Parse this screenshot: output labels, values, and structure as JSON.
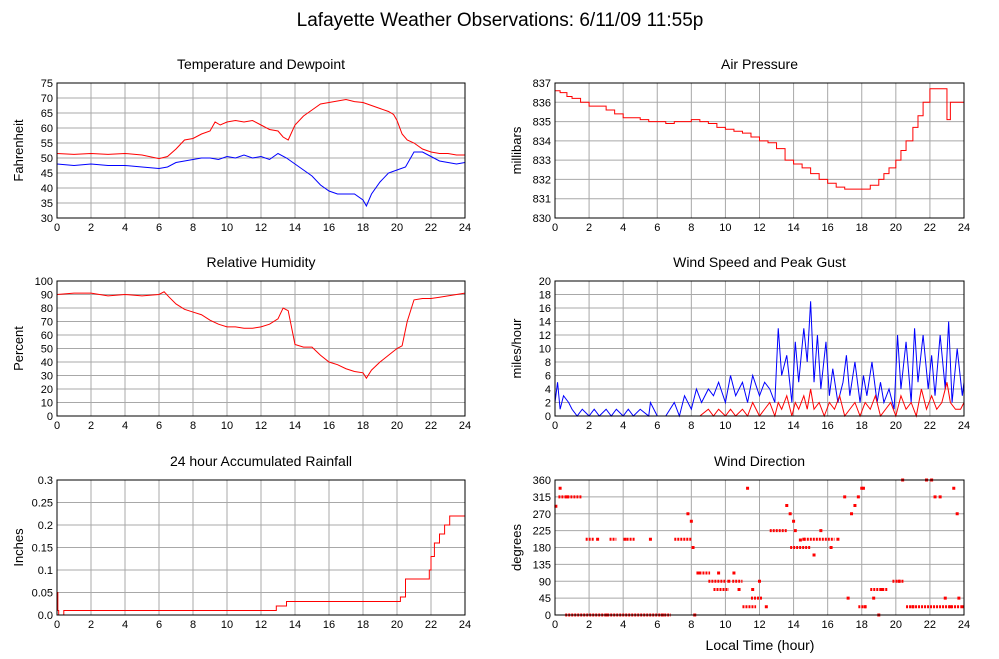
{
  "title": "Lafayette Weather Observations: 6/11/09 11:55p",
  "xlabel_shared": "Local Time (hour)",
  "chart_data": [
    {
      "id": "temperature",
      "type": "line",
      "title": "Temperature and Dewpoint",
      "xlabel": "",
      "ylabel": "Fahrenheit",
      "xlim": [
        0,
        24
      ],
      "ylim": [
        30,
        75
      ],
      "xticks": [
        0,
        2,
        4,
        6,
        8,
        10,
        12,
        14,
        16,
        18,
        20,
        22,
        24
      ],
      "yticks": [
        30,
        35,
        40,
        45,
        50,
        55,
        60,
        65,
        70,
        75
      ],
      "grid": true,
      "series": [
        {
          "color": "#ff0000",
          "step": false,
          "x": [
            0,
            1,
            2,
            3,
            4,
            5,
            6,
            6.5,
            7,
            7.5,
            8,
            8.5,
            9,
            9.3,
            9.6,
            10,
            10.5,
            11,
            11.5,
            12,
            12.5,
            13,
            13.3,
            13.6,
            14,
            14.5,
            15,
            15.5,
            16,
            16.5,
            17,
            17.5,
            18,
            18.5,
            19,
            19.5,
            19.8,
            20,
            20.3,
            20.6,
            21,
            21.5,
            22,
            22.5,
            23,
            23.5,
            24
          ],
          "y": [
            51.5,
            51.2,
            51.5,
            51.2,
            51.5,
            51,
            49.8,
            50.5,
            53,
            56,
            56.5,
            58,
            59,
            62,
            61,
            62,
            62.5,
            62,
            62.5,
            61,
            59.5,
            59,
            57,
            56,
            61,
            64,
            66,
            68,
            68.5,
            69,
            69.5,
            68.8,
            68.5,
            67.5,
            66.5,
            65.5,
            64.5,
            62.5,
            58,
            56,
            55,
            53,
            52,
            51.5,
            51.5,
            51,
            51
          ]
        },
        {
          "color": "#0000ff",
          "step": false,
          "x": [
            0,
            1,
            2,
            3,
            4,
            5,
            6,
            6.5,
            7,
            7.5,
            8,
            8.5,
            9,
            9.5,
            10,
            10.5,
            11,
            11.5,
            12,
            12.5,
            13,
            13.5,
            14,
            14.5,
            15,
            15.5,
            16,
            16.5,
            17,
            17.5,
            18,
            18.2,
            18.5,
            19,
            19.5,
            20,
            20.5,
            21,
            21.5,
            22,
            22.5,
            23,
            23.5,
            24
          ],
          "y": [
            48,
            47.5,
            48,
            47.5,
            47.5,
            47,
            46.5,
            47,
            48.5,
            49,
            49.5,
            50,
            50,
            49.5,
            50.5,
            50,
            51,
            50,
            50.5,
            49.5,
            51.5,
            50,
            48,
            46,
            44,
            41,
            39,
            38,
            38,
            38,
            36,
            34,
            38,
            42,
            45,
            46,
            47,
            52,
            52,
            50.5,
            49,
            48.5,
            48,
            48.5
          ]
        }
      ]
    },
    {
      "id": "pressure",
      "type": "line",
      "title": "Air Pressure",
      "xlabel": "",
      "ylabel": "millibars",
      "xlim": [
        0,
        24
      ],
      "ylim": [
        830,
        837
      ],
      "xticks": [
        0,
        2,
        4,
        6,
        8,
        10,
        12,
        14,
        16,
        18,
        20,
        22,
        24
      ],
      "yticks": [
        830,
        831,
        832,
        833,
        834,
        835,
        836,
        837
      ],
      "grid": true,
      "series": [
        {
          "color": "#ff0000",
          "step": true,
          "x": [
            0,
            0.3,
            0.7,
            1,
            1.5,
            2,
            3,
            3.5,
            4,
            5,
            5.5,
            6,
            6.5,
            7,
            7.5,
            8,
            8.5,
            9,
            9.5,
            10,
            10.5,
            11,
            11.5,
            12,
            12.5,
            13,
            13.5,
            14,
            14.5,
            15,
            15.5,
            16,
            16.5,
            17,
            17.5,
            18,
            18.5,
            19,
            19.3,
            19.6,
            20,
            20.3,
            20.6,
            21,
            21.3,
            21.6,
            22,
            22.5,
            23,
            23.2,
            23.5,
            24
          ],
          "x_note": "",
          "y": [
            836.6,
            836.5,
            836.3,
            836.2,
            836.0,
            835.8,
            835.6,
            835.4,
            835.2,
            835.1,
            835.0,
            835.0,
            834.9,
            835.0,
            835.0,
            835.1,
            835.0,
            834.9,
            834.7,
            834.6,
            834.5,
            834.4,
            834.2,
            834.0,
            833.9,
            833.6,
            833.0,
            832.8,
            832.6,
            832.3,
            832.0,
            831.8,
            831.6,
            831.5,
            831.5,
            831.5,
            831.7,
            832.0,
            832.3,
            832.6,
            833.0,
            833.5,
            834.0,
            834.7,
            835.3,
            836.0,
            836.7,
            836.7,
            835.1,
            836.0,
            836.0,
            835.5
          ]
        }
      ]
    },
    {
      "id": "humidity",
      "type": "line",
      "title": "Relative Humidity",
      "xlabel": "",
      "ylabel": "Percent",
      "xlim": [
        0,
        24
      ],
      "ylim": [
        0,
        100
      ],
      "xticks": [
        0,
        2,
        4,
        6,
        8,
        10,
        12,
        14,
        16,
        18,
        20,
        22,
        24
      ],
      "yticks": [
        0,
        10,
        20,
        30,
        40,
        50,
        60,
        70,
        80,
        90,
        100
      ],
      "grid": true,
      "series": [
        {
          "color": "#ff0000",
          "step": false,
          "x": [
            0,
            1,
            2,
            3,
            4,
            5,
            6,
            6.3,
            6.6,
            7,
            7.5,
            8,
            8.5,
            9,
            9.5,
            10,
            10.5,
            11,
            11.5,
            12,
            12.5,
            13,
            13.3,
            13.6,
            14,
            14.5,
            15,
            15.5,
            16,
            16.5,
            17,
            17.5,
            18,
            18.2,
            18.5,
            19,
            19.5,
            20,
            20.3,
            20.6,
            21,
            21.5,
            22,
            22.5,
            23,
            23.5,
            24
          ],
          "y": [
            90,
            91,
            91,
            89,
            90,
            89,
            90,
            92,
            88,
            83,
            79,
            77,
            75,
            71,
            68,
            66,
            66,
            65,
            65,
            66,
            68,
            72,
            80,
            78,
            53,
            51,
            51,
            45,
            40,
            38,
            35,
            33,
            32,
            28,
            34,
            40,
            45,
            50,
            52,
            70,
            86,
            87,
            87,
            88,
            89,
            90,
            91
          ]
        }
      ]
    },
    {
      "id": "wind",
      "type": "line",
      "title": "Wind Speed and Peak Gust",
      "xlabel": "",
      "ylabel": "miles/hour",
      "xlim": [
        0,
        24
      ],
      "ylim": [
        0,
        20
      ],
      "xticks": [
        0,
        2,
        4,
        6,
        8,
        10,
        12,
        14,
        16,
        18,
        20,
        22,
        24
      ],
      "yticks": [
        0,
        2,
        4,
        6,
        8,
        10,
        12,
        14,
        16,
        18,
        20
      ],
      "grid": true,
      "series": [
        {
          "color": "#0000ff",
          "step": false,
          "x": [
            0,
            0.15,
            0.3,
            0.5,
            0.8,
            1,
            1.3,
            1.6,
            2,
            2.3,
            2.6,
            3,
            3.3,
            3.6,
            4,
            4.3,
            4.6,
            5,
            5.5,
            5.6,
            6,
            6.5,
            7,
            7.3,
            7.6,
            8,
            8.3,
            8.6,
            9,
            9.3,
            9.6,
            10,
            10.3,
            10.6,
            11,
            11.3,
            11.6,
            12,
            12.3,
            12.6,
            12.9,
            13.1,
            13.3,
            13.6,
            13.9,
            14.1,
            14.3,
            14.6,
            14.8,
            15,
            15.2,
            15.4,
            15.6,
            15.9,
            16.1,
            16.3,
            16.6,
            16.9,
            17.1,
            17.3,
            17.6,
            17.9,
            18.1,
            18.3,
            18.6,
            18.9,
            19.1,
            19.3,
            19.6,
            19.9,
            20.1,
            20.3,
            20.6,
            20.9,
            21.1,
            21.3,
            21.6,
            21.9,
            22.1,
            22.3,
            22.6,
            22.9,
            23.1,
            23.3,
            23.6,
            23.9,
            24
          ],
          "y": [
            2,
            5,
            1,
            3,
            2,
            1,
            0,
            1,
            0,
            1,
            0,
            1,
            0,
            1,
            0,
            1,
            0,
            1,
            0,
            2,
            0,
            0,
            2,
            0,
            3,
            1,
            4,
            2,
            4,
            3,
            5,
            2,
            6,
            3,
            5,
            2,
            6,
            3,
            5,
            4,
            2,
            13,
            6,
            9,
            2,
            11,
            5,
            13,
            8,
            17,
            5,
            12,
            4,
            11,
            3,
            7,
            2,
            5,
            9,
            3,
            8,
            2,
            6,
            3,
            8,
            2,
            5,
            2,
            4,
            1,
            12,
            4,
            11,
            2,
            13,
            5,
            12,
            4,
            9,
            3,
            12,
            4,
            14,
            2,
            10,
            3,
            5
          ]
        },
        {
          "color": "#ff0000",
          "step": false,
          "x": [
            0,
            0.5,
            1,
            2,
            3,
            4,
            5,
            6,
            7,
            8,
            8.5,
            9,
            9.3,
            9.6,
            10,
            10.3,
            10.6,
            11,
            11.3,
            11.6,
            12,
            12.3,
            12.6,
            12.9,
            13.1,
            13.3,
            13.6,
            13.9,
            14.1,
            14.3,
            14.6,
            14.8,
            15,
            15.2,
            15.5,
            15.8,
            16.1,
            16.4,
            16.7,
            17,
            17.3,
            17.6,
            17.9,
            18.2,
            18.5,
            18.8,
            19.1,
            19.4,
            19.7,
            20,
            20.3,
            20.6,
            20.9,
            21.2,
            21.5,
            21.8,
            22.1,
            22.4,
            22.7,
            23,
            23.2,
            23.5,
            23.8,
            24
          ],
          "y": [
            0,
            0,
            0,
            0,
            0,
            0,
            0,
            0,
            0,
            0,
            0,
            1,
            0,
            1,
            0,
            1,
            0,
            1,
            0,
            2,
            0,
            1,
            2,
            0,
            2,
            1,
            3,
            0,
            2,
            1,
            3,
            1,
            4,
            1,
            2,
            0,
            2,
            1,
            3,
            0,
            1,
            2,
            0,
            2,
            1,
            3,
            0,
            1,
            2,
            0,
            3,
            1,
            2,
            0,
            4,
            1,
            3,
            1,
            2,
            5,
            2,
            1,
            1,
            2
          ]
        }
      ]
    },
    {
      "id": "rainfall",
      "type": "line",
      "title": "24 hour Accumulated Rainfall",
      "xlabel": "",
      "ylabel": "Inches",
      "xlim": [
        0,
        24
      ],
      "ylim": [
        0,
        0.3
      ],
      "xticks": [
        0,
        2,
        4,
        6,
        8,
        10,
        12,
        14,
        16,
        18,
        20,
        22,
        24
      ],
      "yticks": [
        0,
        0.05,
        0.1,
        0.15,
        0.2,
        0.25,
        0.3
      ],
      "yticklabels": [
        "0.0",
        "0.05",
        "0.1",
        "0.15",
        "0.2",
        "0.25",
        "0.3"
      ],
      "grid": true,
      "series": [
        {
          "color": "#ff0000",
          "step": true,
          "x": [
            0,
            0.05,
            0.1,
            0.4,
            12.9,
            13.5,
            20.2,
            20.5,
            21.9,
            22.0,
            22.2,
            22.5,
            22.8,
            23.1,
            23.4,
            24
          ],
          "y": [
            0.05,
            0.01,
            0,
            0.01,
            0.02,
            0.03,
            0.04,
            0.08,
            0.1,
            0.13,
            0.16,
            0.18,
            0.2,
            0.22,
            0.22,
            0.22
          ]
        }
      ]
    },
    {
      "id": "direction",
      "type": "scatter",
      "title": "Wind Direction",
      "xlabel": "Local Time (hour)",
      "ylabel": "degrees",
      "xlim": [
        0,
        24
      ],
      "ylim": [
        0,
        360
      ],
      "xticks": [
        0,
        2,
        4,
        6,
        8,
        10,
        12,
        14,
        16,
        18,
        20,
        22,
        24
      ],
      "yticks": [
        0,
        45,
        90,
        135,
        180,
        225,
        270,
        315,
        360
      ],
      "grid": true,
      "segments": [
        {
          "x0": 0.2,
          "x1": 1.6,
          "y": 315
        },
        {
          "x0": 0.6,
          "x1": 6.8,
          "y": 0
        },
        {
          "x0": 1.8,
          "x1": 2.3,
          "y": 202
        },
        {
          "x0": 3.2,
          "x1": 3.6,
          "y": 202
        },
        {
          "x0": 4.2,
          "x1": 4.7,
          "y": 202
        },
        {
          "x0": 7.0,
          "x1": 8.0,
          "y": 202
        },
        {
          "x0": 8.3,
          "x1": 9.1,
          "y": 112
        },
        {
          "x0": 9.0,
          "x1": 10.0,
          "y": 90
        },
        {
          "x0": 9.3,
          "x1": 10.2,
          "y": 68
        },
        {
          "x0": 10.4,
          "x1": 11.0,
          "y": 90
        },
        {
          "x0": 11.0,
          "x1": 11.8,
          "y": 22
        },
        {
          "x0": 11.5,
          "x1": 12.2,
          "y": 45
        },
        {
          "x0": 12.6,
          "x1": 13.6,
          "y": 225
        },
        {
          "x0": 13.8,
          "x1": 15.0,
          "y": 180
        },
        {
          "x0": 14.6,
          "x1": 16.4,
          "y": 202
        },
        {
          "x0": 17.8,
          "x1": 18.3,
          "y": 22
        },
        {
          "x0": 18.5,
          "x1": 19.5,
          "y": 68
        },
        {
          "x0": 19.8,
          "x1": 20.5,
          "y": 90
        },
        {
          "x0": 20.6,
          "x1": 23.8,
          "y": 22
        }
      ],
      "points_x": [
        0.05,
        0.3,
        0.7,
        2.5,
        3.0,
        4.1,
        5.6,
        6.3,
        7.8,
        8.0,
        8.1,
        8.2,
        8.4,
        9.6,
        10.2,
        10.5,
        10.8,
        11.3,
        11.6,
        12.0,
        12.4,
        13.6,
        13.8,
        14.0,
        14.1,
        14.4,
        14.6,
        15.2,
        15.6,
        16.2,
        16.6,
        17.0,
        17.2,
        17.4,
        17.6,
        17.8,
        18.0,
        18.1,
        18.2,
        18.7,
        19.0,
        19.2,
        20.2,
        20.4,
        21.0,
        21.8,
        22.1,
        22.3,
        22.6,
        22.9,
        23.2,
        23.4,
        23.6,
        23.7,
        23.9
      ],
      "points_y": [
        290,
        338,
        315,
        202,
        0,
        202,
        202,
        0,
        270,
        250,
        180,
        0,
        112,
        112,
        90,
        112,
        68,
        338,
        68,
        90,
        22,
        292,
        270,
        250,
        225,
        200,
        202,
        160,
        225,
        180,
        202,
        315,
        45,
        270,
        292,
        315,
        338,
        338,
        22,
        45,
        0,
        68,
        90,
        360,
        22,
        360,
        360,
        315,
        315,
        45,
        22,
        338,
        270,
        45,
        22
      ]
    }
  ]
}
